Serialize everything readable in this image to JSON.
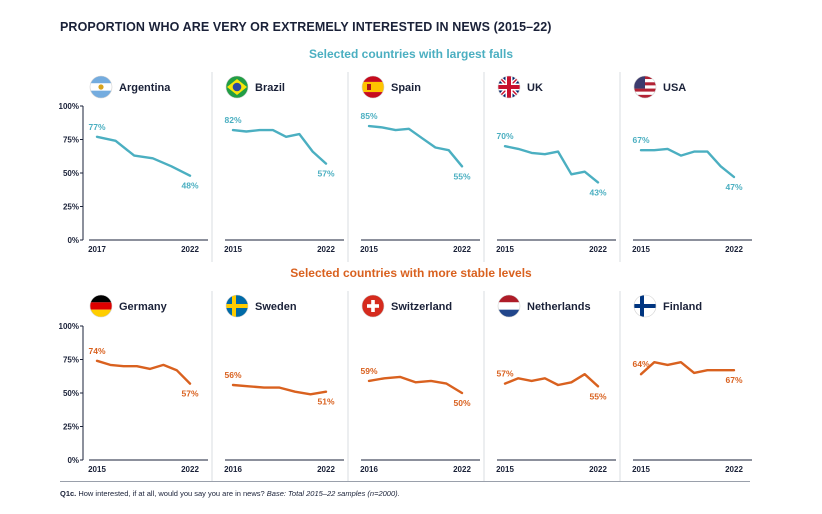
{
  "title": "PROPORTION WHO ARE VERY OR EXTREMELY INTERESTED IN NEWS (2015–22)",
  "sections": [
    {
      "title": "Selected countries with largest falls",
      "color": "#4bafc1"
    },
    {
      "title": "Selected countries with more stable levels",
      "color": "#d9611f"
    }
  ],
  "footnote": {
    "code": "Q1c.",
    "question": " How interested, if at all, would you say you are in news? ",
    "base": "Base: Total 2015–22 samples (n=2000)."
  },
  "chart_data": {
    "type": "line",
    "ylim": [
      0,
      100
    ],
    "yticks": [
      "0%",
      "25%",
      "50%",
      "75%",
      "100%"
    ],
    "ytick_values": [
      0,
      25,
      50,
      75,
      100
    ],
    "panels": [
      {
        "country": "Argentina",
        "flag": "argentina-flag",
        "section": 0,
        "x_labels": [
          "2017",
          "2022"
        ],
        "x": [
          2017,
          2018,
          2019,
          2020,
          2021,
          2022
        ],
        "values": [
          77,
          74,
          63,
          61,
          55,
          48
        ],
        "start_label": "77%",
        "end_label": "48%"
      },
      {
        "country": "Brazil",
        "flag": "brazil-flag",
        "section": 0,
        "x_labels": [
          "2015",
          "2022"
        ],
        "x": [
          2015,
          2016,
          2017,
          2018,
          2019,
          2020,
          2021,
          2022
        ],
        "values": [
          82,
          81,
          82,
          82,
          77,
          79,
          66,
          57
        ],
        "start_label": "82%",
        "end_label": "57%"
      },
      {
        "country": "Spain",
        "flag": "spain-flag",
        "section": 0,
        "x_labels": [
          "2015",
          "2022"
        ],
        "x": [
          2015,
          2016,
          2017,
          2018,
          2019,
          2020,
          2021,
          2022
        ],
        "values": [
          85,
          84,
          82,
          83,
          76,
          69,
          67,
          55
        ],
        "start_label": "85%",
        "end_label": "55%"
      },
      {
        "country": "UK",
        "flag": "uk-flag",
        "section": 0,
        "x_labels": [
          "2015",
          "2022"
        ],
        "x": [
          2015,
          2016,
          2017,
          2018,
          2019,
          2020,
          2021,
          2022
        ],
        "values": [
          70,
          68,
          65,
          64,
          66,
          49,
          51,
          43
        ],
        "start_label": "70%",
        "end_label": "43%"
      },
      {
        "country": "USA",
        "flag": "usa-flag",
        "section": 0,
        "x_labels": [
          "2015",
          "2022"
        ],
        "x": [
          2015,
          2016,
          2017,
          2018,
          2019,
          2020,
          2021,
          2022
        ],
        "values": [
          67,
          67,
          68,
          63,
          66,
          66,
          55,
          47
        ],
        "start_label": "67%",
        "end_label": "47%"
      },
      {
        "country": "Germany",
        "flag": "germany-flag",
        "section": 1,
        "x_labels": [
          "2015",
          "2022"
        ],
        "x": [
          2015,
          2016,
          2017,
          2018,
          2019,
          2020,
          2021,
          2022
        ],
        "values": [
          74,
          71,
          70,
          70,
          68,
          71,
          67,
          57
        ],
        "start_label": "74%",
        "end_label": "57%"
      },
      {
        "country": "Sweden",
        "flag": "sweden-flag",
        "section": 1,
        "x_labels": [
          "2016",
          "2022"
        ],
        "x": [
          2016,
          2017,
          2018,
          2019,
          2020,
          2021,
          2022
        ],
        "values": [
          56,
          55,
          54,
          54,
          51,
          49,
          51
        ],
        "start_label": "56%",
        "end_label": "51%"
      },
      {
        "country": "Switzerland",
        "flag": "switzerland-flag",
        "section": 1,
        "x_labels": [
          "2016",
          "2022"
        ],
        "x": [
          2016,
          2017,
          2018,
          2019,
          2020,
          2021,
          2022
        ],
        "values": [
          59,
          61,
          62,
          58,
          59,
          57,
          50
        ],
        "start_label": "59%",
        "end_label": "50%"
      },
      {
        "country": "Netherlands",
        "flag": "netherlands-flag",
        "section": 1,
        "x_labels": [
          "2015",
          "2022"
        ],
        "x": [
          2015,
          2016,
          2017,
          2018,
          2019,
          2020,
          2021,
          2022
        ],
        "values": [
          57,
          61,
          59,
          61,
          56,
          58,
          64,
          55
        ],
        "start_label": "57%",
        "end_label": "55%"
      },
      {
        "country": "Finland",
        "flag": "finland-flag",
        "section": 1,
        "x_labels": [
          "2015",
          "2022"
        ],
        "x": [
          2015,
          2016,
          2017,
          2018,
          2019,
          2020,
          2021,
          2022
        ],
        "values": [
          64,
          73,
          71,
          73,
          65,
          67,
          67,
          67
        ],
        "start_label": "64%",
        "end_label": "67%"
      }
    ]
  }
}
